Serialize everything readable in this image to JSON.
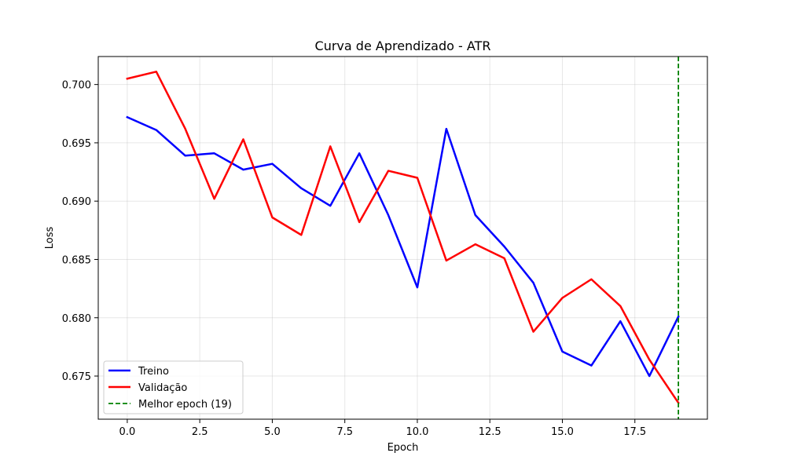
{
  "chart_data": {
    "type": "line",
    "title": "Curva de Aprendizado - ATR",
    "xlabel": "Epoch",
    "ylabel": "Loss",
    "xlim": [
      -1.0,
      20.0
    ],
    "ylim": [
      0.6713,
      0.7024
    ],
    "xticks": [
      0.0,
      2.5,
      5.0,
      7.5,
      10.0,
      12.5,
      15.0,
      17.5
    ],
    "xtick_labels": [
      "0.0",
      "2.5",
      "5.0",
      "7.5",
      "10.0",
      "12.5",
      "15.0",
      "17.5"
    ],
    "yticks": [
      0.675,
      0.68,
      0.685,
      0.69,
      0.695,
      0.7
    ],
    "ytick_labels": [
      "0.675",
      "0.680",
      "0.685",
      "0.690",
      "0.695",
      "0.700"
    ],
    "grid": true,
    "legend_position": "lower-left",
    "x": [
      0,
      1,
      2,
      3,
      4,
      5,
      6,
      7,
      8,
      9,
      10,
      11,
      12,
      13,
      14,
      15,
      16,
      17,
      18,
      19
    ],
    "series": [
      {
        "name": "Treino",
        "color": "#0000ff",
        "values": [
          0.6972,
          0.6961,
          0.6939,
          0.6941,
          0.6927,
          0.6932,
          0.6911,
          0.6896,
          0.6941,
          0.6888,
          0.6826,
          0.6962,
          0.6888,
          0.6861,
          0.683,
          0.6771,
          0.6759,
          0.6797,
          0.675,
          0.6801
        ]
      },
      {
        "name": "Validação",
        "color": "#ff0000",
        "values": [
          0.7005,
          0.7011,
          0.6962,
          0.6902,
          0.6953,
          0.6886,
          0.6871,
          0.6947,
          0.6882,
          0.6926,
          0.692,
          0.6849,
          0.6863,
          0.6851,
          0.6788,
          0.6817,
          0.6833,
          0.681,
          0.6764,
          0.6727
        ]
      }
    ],
    "vline": {
      "name": "Melhor epoch (19)",
      "x": 19,
      "color": "#008000"
    }
  }
}
